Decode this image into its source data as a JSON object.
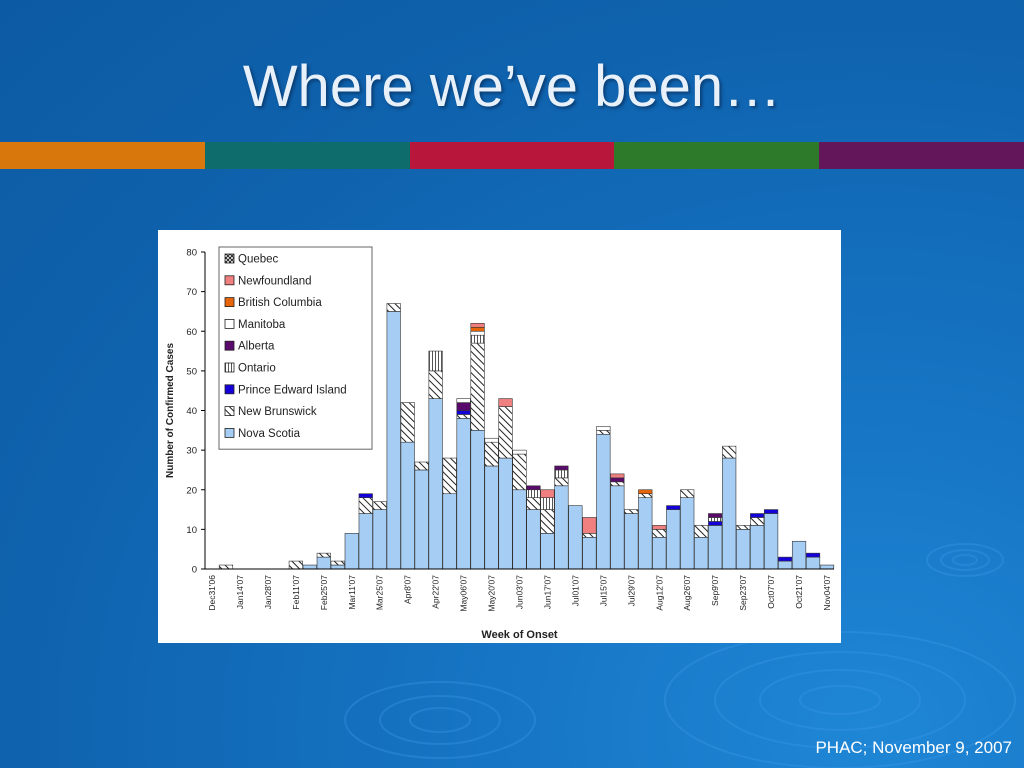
{
  "slide": {
    "title": "Where we’ve been…",
    "footer": "PHAC; November 9, 2007",
    "band_colors": [
      "#d8780c",
      "#0e6d6c",
      "#b9163c",
      "#2d7a2a",
      "#63175a"
    ]
  },
  "chart_data": {
    "type": "bar",
    "stacked": true,
    "title": "",
    "xlabel": "Week of Onset",
    "ylabel": "Number of Confirmed Cases",
    "ylim": [
      0,
      80
    ],
    "yticks": [
      0,
      10,
      20,
      30,
      40,
      50,
      60,
      70,
      80
    ],
    "grid": false,
    "legend_position": "top-left",
    "tick_labels": [
      "Dec31'06",
      "Jan14'07",
      "Jan28'07",
      "Feb11'07",
      "Feb25'07",
      "Mar11'07",
      "Mar25'07",
      "Apr8'07",
      "Apr22'07",
      "May06'07",
      "May20'07",
      "Jun03'07",
      "Jun17'07",
      "Jul01'07",
      "Jul15'07",
      "Jul29'07",
      "Aug12'07",
      "Aug26'07",
      "Sep9'07",
      "Sep23'07",
      "Oct07'07",
      "Oct21'07",
      "Nov04'07"
    ],
    "categories": [
      "Dec31'06",
      "Jan07'07",
      "Jan14'07",
      "Jan21'07",
      "Jan28'07",
      "Feb04'07",
      "Feb11'07",
      "Feb18'07",
      "Feb25'07",
      "Mar04'07",
      "Mar11'07",
      "Mar18'07",
      "Mar25'07",
      "Apr01'07",
      "Apr8'07",
      "Apr15'07",
      "Apr22'07",
      "Apr29'07",
      "May06'07",
      "May13'07",
      "May20'07",
      "May27'07",
      "Jun03'07",
      "Jun10'07",
      "Jun17'07",
      "Jun24'07",
      "Jul01'07",
      "Jul08'07",
      "Jul15'07",
      "Jul22'07",
      "Jul29'07",
      "Aug05'07",
      "Aug12'07",
      "Aug19'07",
      "Aug26'07",
      "Sep02'07",
      "Sep9'07",
      "Sep16'07",
      "Sep23'07",
      "Sep30'07",
      "Oct07'07",
      "Oct14'07",
      "Oct21'07",
      "Oct28'07",
      "Nov04'07"
    ],
    "series": [
      {
        "name": "Nova Scotia",
        "color": "#a6cdf4",
        "pattern": "solid",
        "values": [
          0,
          0,
          0,
          0,
          0,
          0,
          0,
          1,
          3,
          1,
          9,
          14,
          15,
          65,
          32,
          25,
          43,
          19,
          38,
          35,
          26,
          28,
          20,
          15,
          9,
          21,
          16,
          8,
          34,
          21,
          14,
          18,
          8,
          15,
          18,
          8,
          11,
          28,
          10,
          11,
          14,
          2,
          7,
          3,
          1
        ]
      },
      {
        "name": "New Brunswick",
        "color": "#ffffff",
        "pattern": "hatch",
        "values": [
          0,
          1,
          0,
          0,
          0,
          0,
          2,
          0,
          1,
          1,
          0,
          4,
          2,
          2,
          10,
          2,
          7,
          9,
          1,
          22,
          6,
          13,
          9,
          3,
          6,
          2,
          0,
          1,
          1,
          1,
          1,
          1,
          2,
          0,
          2,
          3,
          0,
          3,
          1,
          2,
          0,
          0,
          0,
          0,
          0
        ]
      },
      {
        "name": "Prince Edward Island",
        "color": "#1400d8",
        "pattern": "solid",
        "values": [
          0,
          0,
          0,
          0,
          0,
          0,
          0,
          0,
          0,
          0,
          0,
          1,
          0,
          0,
          0,
          0,
          0,
          0,
          1,
          0,
          0,
          0,
          0,
          0,
          0,
          0,
          0,
          0,
          0,
          0,
          0,
          0,
          0,
          1,
          0,
          0,
          1,
          0,
          0,
          1,
          1,
          1,
          0,
          1,
          0
        ]
      },
      {
        "name": "Ontario",
        "color": "#ffffff",
        "pattern": "vlines",
        "values": [
          0,
          0,
          0,
          0,
          0,
          0,
          0,
          0,
          0,
          0,
          0,
          0,
          0,
          0,
          0,
          0,
          5,
          0,
          0,
          2,
          0,
          0,
          0,
          2,
          3,
          2,
          0,
          0,
          0,
          0,
          0,
          0,
          0,
          0,
          0,
          0,
          1,
          0,
          0,
          0,
          0,
          0,
          0,
          0,
          0
        ]
      },
      {
        "name": "Alberta",
        "color": "#5a0a6b",
        "pattern": "solid",
        "values": [
          0,
          0,
          0,
          0,
          0,
          0,
          0,
          0,
          0,
          0,
          0,
          0,
          0,
          0,
          0,
          0,
          0,
          0,
          2,
          0,
          0,
          0,
          0,
          1,
          0,
          1,
          0,
          0,
          0,
          1,
          0,
          0,
          0,
          0,
          0,
          0,
          1,
          0,
          0,
          0,
          0,
          0,
          0,
          0,
          0
        ]
      },
      {
        "name": "Manitoba",
        "color": "#ffffff",
        "pattern": "solid",
        "values": [
          0,
          0,
          0,
          0,
          0,
          0,
          0,
          0,
          0,
          0,
          0,
          0,
          0,
          0,
          0,
          0,
          0,
          0,
          1,
          1,
          1,
          0,
          1,
          0,
          0,
          0,
          0,
          0,
          1,
          0,
          0,
          0,
          0,
          0,
          0,
          0,
          0,
          0,
          0,
          0,
          0,
          0,
          0,
          0,
          0
        ]
      },
      {
        "name": "British Columbia",
        "color": "#e8640a",
        "pattern": "solid",
        "values": [
          0,
          0,
          0,
          0,
          0,
          0,
          0,
          0,
          0,
          0,
          0,
          0,
          0,
          0,
          0,
          0,
          0,
          0,
          0,
          1,
          0,
          0,
          0,
          0,
          0,
          0,
          0,
          0,
          0,
          0,
          0,
          1,
          0,
          0,
          0,
          0,
          0,
          0,
          0,
          0,
          0,
          0,
          0,
          0,
          0
        ]
      },
      {
        "name": "Newfoundland",
        "color": "#f08080",
        "pattern": "solid",
        "values": [
          0,
          0,
          0,
          0,
          0,
          0,
          0,
          0,
          0,
          0,
          0,
          0,
          0,
          0,
          0,
          0,
          0,
          0,
          0,
          1,
          0,
          2,
          0,
          0,
          2,
          0,
          0,
          4,
          0,
          1,
          0,
          0,
          1,
          0,
          0,
          0,
          0,
          0,
          0,
          0,
          0,
          0,
          0,
          0,
          0
        ]
      },
      {
        "name": "Quebec",
        "color": "#ffffff",
        "pattern": "cross",
        "values": [
          0,
          0,
          0,
          0,
          0,
          0,
          0,
          0,
          0,
          0,
          0,
          0,
          0,
          0,
          0,
          0,
          0,
          0,
          0,
          0,
          0,
          0,
          0,
          0,
          0,
          0,
          0,
          0,
          0,
          0,
          0,
          0,
          0,
          0,
          0,
          0,
          0,
          0,
          0,
          0,
          0,
          0,
          0,
          0,
          0
        ]
      }
    ],
    "legend_order": [
      "Quebec",
      "Newfoundland",
      "British Columbia",
      "Manitoba",
      "Alberta",
      "Ontario",
      "Prince Edward Island",
      "New Brunswick",
      "Nova Scotia"
    ]
  }
}
